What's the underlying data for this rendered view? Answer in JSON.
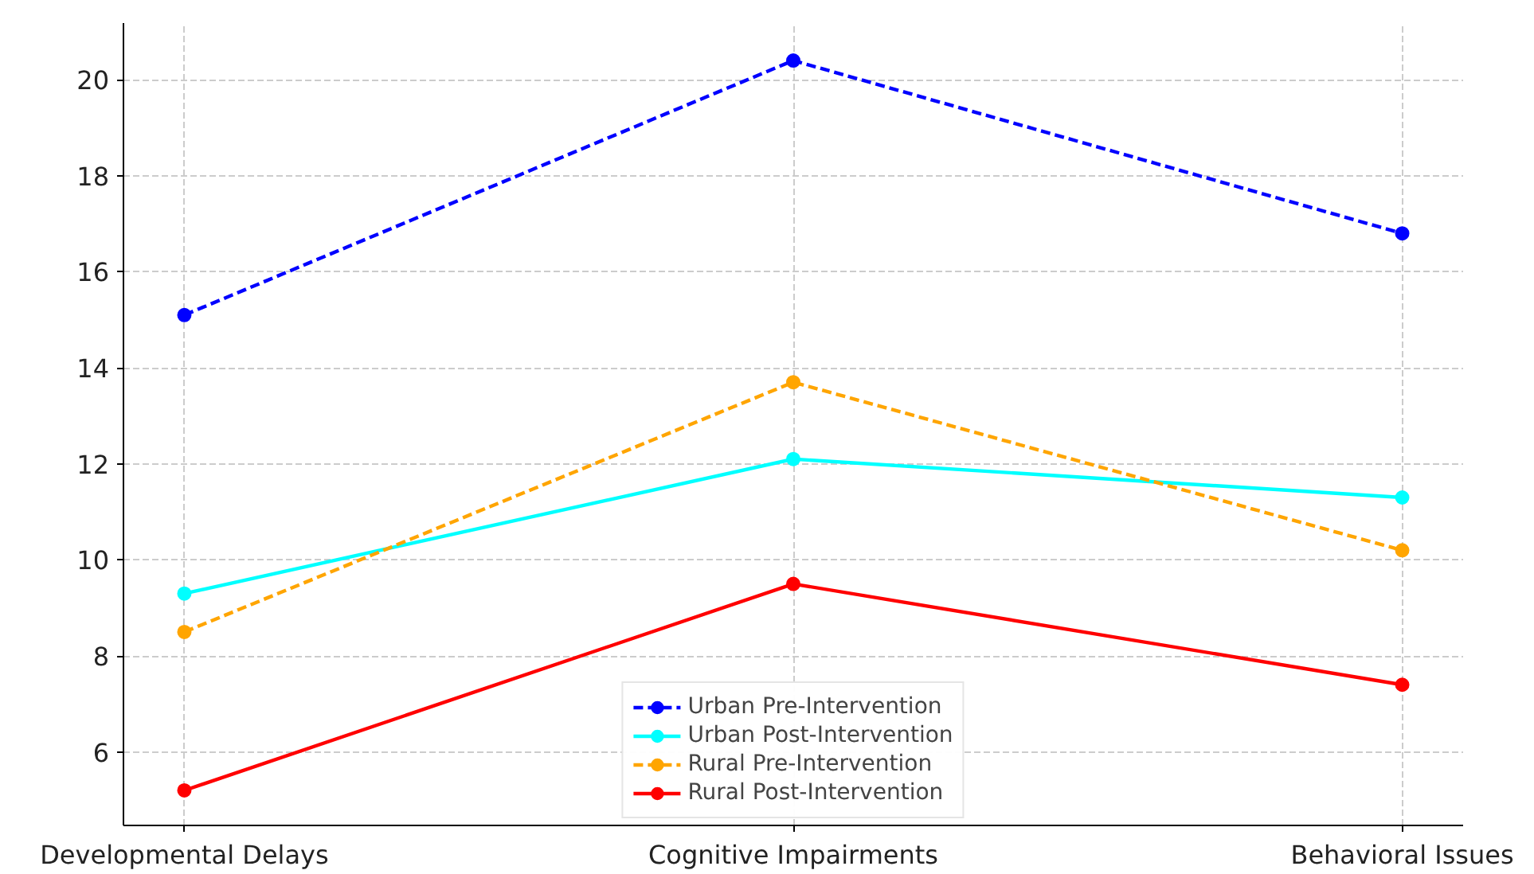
{
  "chart_data": {
    "type": "line",
    "categories": [
      "Developmental Delays",
      "Cognitive Impairments",
      "Behavioral Issues"
    ],
    "series": [
      {
        "name": "Urban Pre-Intervention",
        "color": "#0000ff",
        "values": [
          15.1,
          20.4,
          16.8
        ],
        "line_style": "dashed"
      },
      {
        "name": "Urban Post-Intervention",
        "color": "#00ffff",
        "values": [
          9.3,
          12.1,
          11.3
        ],
        "line_style": "solid"
      },
      {
        "name": "Rural Pre-Intervention",
        "color": "#ffa500",
        "values": [
          8.5,
          13.7,
          10.2
        ],
        "line_style": "dashed"
      },
      {
        "name": "Rural Post-Intervention",
        "color": "#ff0000",
        "values": [
          5.2,
          9.5,
          7.4
        ],
        "line_style": "solid"
      }
    ],
    "ylim": [
      4.47,
      21.18
    ],
    "yticks": [
      6,
      8,
      10,
      12,
      14,
      16,
      18,
      20
    ],
    "grid": true,
    "legend": "bottom",
    "marker": "circle"
  }
}
